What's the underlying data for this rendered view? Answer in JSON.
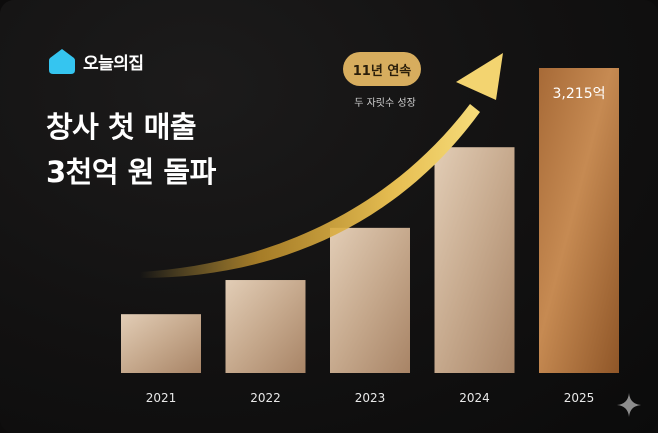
{
  "brand": {
    "name": "오늘의집",
    "logo_icon": "house-icon",
    "logo_color": "#35c5f0"
  },
  "headline": {
    "line1": "창사 첫 매출",
    "line2": "3천억 원 돌파"
  },
  "badge": {
    "label": "11년 연속",
    "sublabel": "두 자릿수 성장",
    "color": "#d7ad5e"
  },
  "colors": {
    "background": "#121111",
    "arrow": "#e2b84a",
    "bar_light": "#d8c3ad",
    "bar_dark": "#8a5a2e",
    "highlight_bar": "#b57b45"
  },
  "decoration": {
    "corner_icon": "sparkle-icon"
  },
  "chart_data": {
    "type": "bar",
    "categories": [
      "2021",
      "2022",
      "2023",
      "2024",
      "2025"
    ],
    "values": [
      620,
      980,
      1530,
      2380,
      3215
    ],
    "highlight_index": 4,
    "data_labels": [
      "",
      "",
      "",
      "",
      "3,215억"
    ],
    "title": "",
    "xlabel": "",
    "ylabel": "",
    "grid": false,
    "trend_arrow": true
  }
}
